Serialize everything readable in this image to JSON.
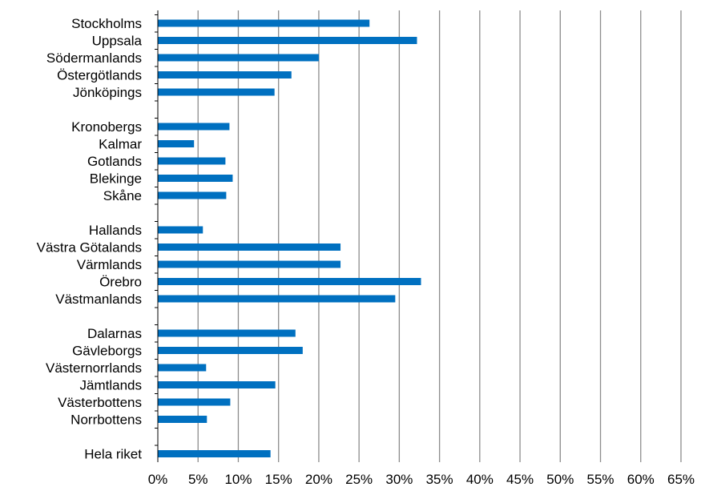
{
  "chart_data": {
    "type": "bar",
    "orientation": "horizontal",
    "title": "",
    "xlabel": "",
    "ylabel": "",
    "xlim": [
      0,
      65
    ],
    "x_ticks": [
      "0%",
      "5%",
      "10%",
      "15%",
      "20%",
      "25%",
      "30%",
      "35%",
      "40%",
      "45%",
      "50%",
      "55%",
      "60%",
      "65%"
    ],
    "grid": "vertical gridlines",
    "legend": "none",
    "bar_color": "#0070C0",
    "categories": [
      "Stockholms",
      "Uppsala",
      "Södermanlands",
      "Östergötlands",
      "Jönköpings",
      "",
      "Kronobergs",
      "Kalmar",
      "Gotlands",
      "Blekinge",
      "Skåne",
      "",
      "Hallands",
      "Västra Götalands",
      "Värmlands",
      "Örebro",
      "Västmanlands",
      "",
      "Dalarnas",
      "Gävleborgs",
      "Västernorrlands",
      "Jämtlands",
      "Västerbottens",
      "Norrbottens",
      "",
      "Hela riket"
    ],
    "values": [
      26.3,
      32.2,
      20.0,
      16.6,
      14.5,
      null,
      8.9,
      4.5,
      8.4,
      9.3,
      8.5,
      null,
      5.6,
      22.7,
      22.7,
      32.7,
      29.5,
      null,
      17.1,
      18.0,
      6.0,
      14.6,
      9.0,
      6.1,
      null,
      14.0
    ]
  }
}
